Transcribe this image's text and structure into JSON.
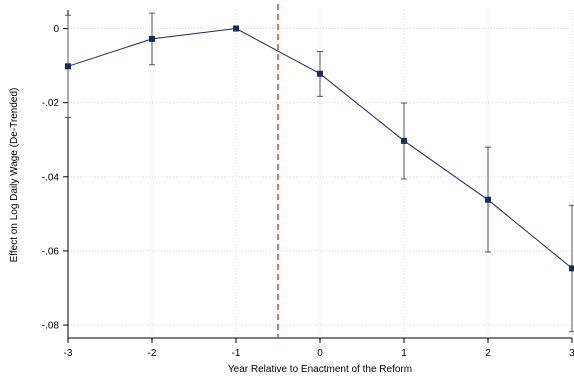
{
  "chart_data": {
    "type": "line",
    "title": "",
    "xlabel": "Year Relative to Enactment of the Reform",
    "ylabel": "Effect on Log Daily Wage (De-Trended)",
    "x": [
      -3,
      -2,
      -1,
      0,
      1,
      2,
      3
    ],
    "x_ticks": [
      "-3",
      "-2",
      "-1",
      "0",
      "1",
      "2",
      "3"
    ],
    "y_ticks": [
      0,
      -0.02,
      -0.04,
      -0.06,
      -0.08
    ],
    "y_tick_labels": [
      "0",
      "-.02",
      "-.04",
      "-.06",
      "-.08"
    ],
    "xlim": [
      -3,
      3
    ],
    "ylim": [
      -0.0835,
      0.005
    ],
    "grid": true,
    "series": [
      {
        "values": [
          -0.0102,
          -0.0028,
          0.0,
          -0.0122,
          -0.0303,
          -0.0462,
          -0.0647
        ],
        "ci_low": [
          -0.024,
          -0.0098,
          0.0,
          -0.0183,
          -0.0406,
          -0.0603,
          -0.0818
        ],
        "ci_high": [
          0.0036,
          0.0042,
          0.0,
          -0.0062,
          -0.0201,
          -0.032,
          -0.0477
        ]
      }
    ],
    "reference_line": {
      "x": -0.5,
      "style": "dashed"
    },
    "colors": {
      "series": "#1a2a5e",
      "error_bars": "#555555",
      "reference": "#e03030",
      "grid": "#d9d9d9"
    }
  }
}
